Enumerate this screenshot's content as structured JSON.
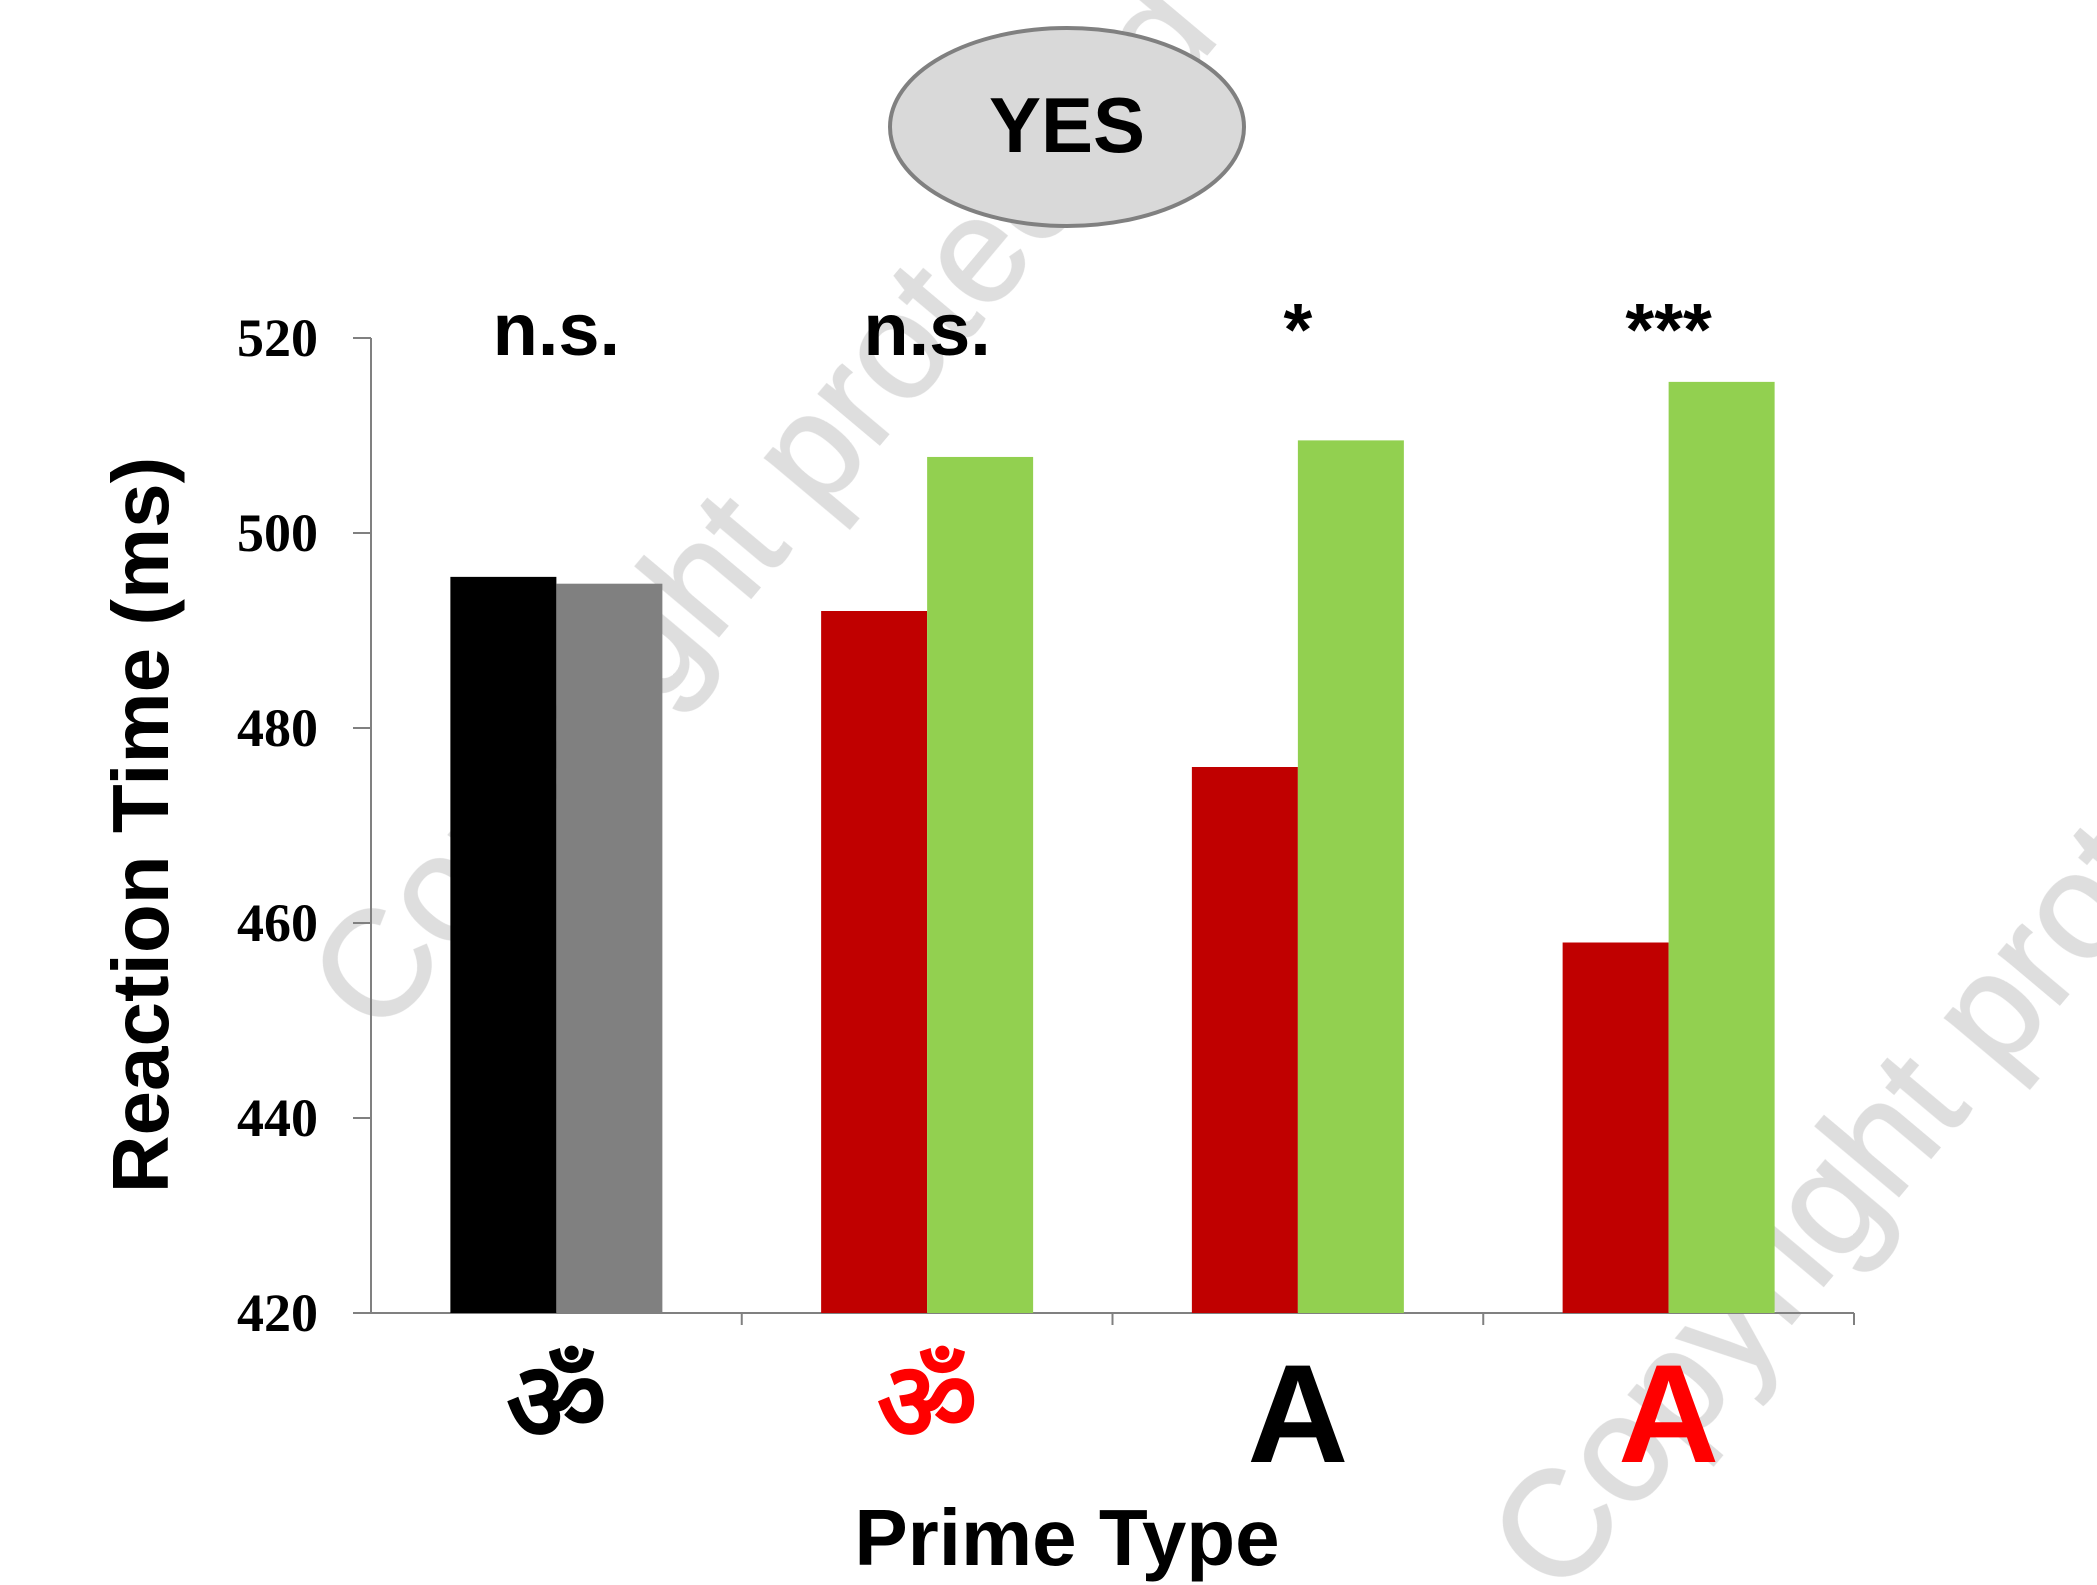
{
  "badge": {
    "label": "YES"
  },
  "chart_data": {
    "type": "bar",
    "xlabel": "Prime Type",
    "ylabel": "Reaction Time (ms)",
    "ylim": [
      420,
      520
    ],
    "yticks": [
      "420",
      "440",
      "460",
      "480",
      "500",
      "520"
    ],
    "grid": false,
    "groups": [
      {
        "prime_symbol": "ॐ",
        "prime_color": "#000000",
        "significance": "n.s.",
        "bars": [
          {
            "value": 495.5,
            "color": "#000000"
          },
          {
            "value": 494.8,
            "color": "#808080"
          }
        ]
      },
      {
        "prime_symbol": "ॐ",
        "prime_color": "#ff0000",
        "significance": "n.s.",
        "bars": [
          {
            "value": 492.0,
            "color": "#c00000"
          },
          {
            "value": 507.8,
            "color": "#92d050"
          }
        ]
      },
      {
        "prime_symbol": "A",
        "prime_color": "#000000",
        "significance": "*",
        "bars": [
          {
            "value": 476.0,
            "color": "#c00000"
          },
          {
            "value": 509.5,
            "color": "#92d050"
          }
        ]
      },
      {
        "prime_symbol": "A",
        "prime_color": "#ff0000",
        "significance": "***",
        "bars": [
          {
            "value": 458.0,
            "color": "#c00000"
          },
          {
            "value": 515.5,
            "color": "#92d050"
          }
        ]
      }
    ]
  },
  "watermark": {
    "text": "Copyright protected",
    "color": "#c8c8c8"
  }
}
